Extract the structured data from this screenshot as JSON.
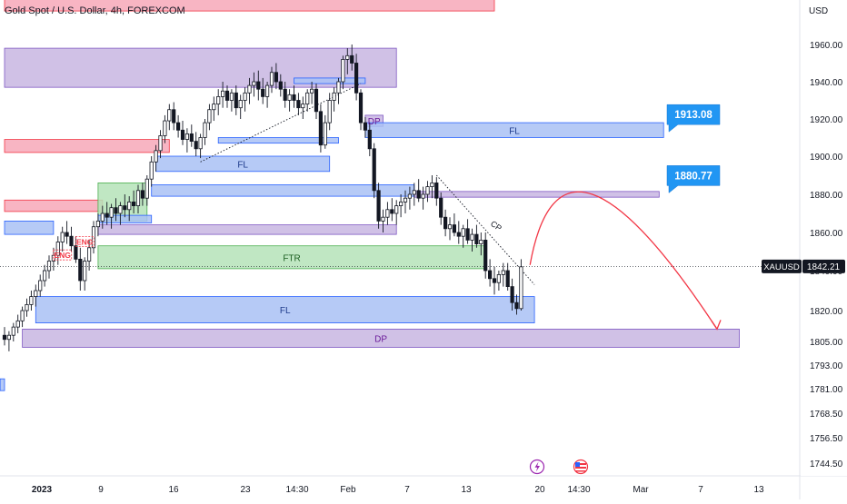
{
  "header": {
    "title": "Gold Spot / U.S. Dollar, 4h, FOREXCOM"
  },
  "chart_data": {
    "type": "candlestick",
    "title": "Gold Spot / U.S. Dollar, 4h, FOREXCOM",
    "currency_label": "USD",
    "symbol": "XAUUSD",
    "last_price": 1842.21,
    "last_price_label": "1842.21",
    "price_ticks": [
      1960.0,
      1940.0,
      1920.0,
      1900.0,
      1880.0,
      1860.0,
      1840.0,
      1820.0,
      1805.0,
      1793.0,
      1781.0,
      1768.5,
      1756.5,
      1744.5
    ],
    "price_tick_labels": [
      "1960.00",
      "1940.00",
      "1920.00",
      "1900.00",
      "1880.00",
      "1860.00",
      "1840.00",
      "1820.00",
      "1805.00",
      "1793.00",
      "1781.00",
      "1768.50",
      "1756.50",
      "1744.50"
    ],
    "time_labels": [
      "2023",
      "9",
      "16",
      "23",
      "14:30",
      "Feb",
      "7",
      "13",
      "20",
      "14:30",
      "Mar",
      "7",
      "13"
    ],
    "time_label_bold": [
      "2023"
    ],
    "price_callouts": [
      {
        "label": "1913.08",
        "price": 1913.08
      },
      {
        "label": "1880.77",
        "price": 1880.77
      }
    ],
    "zones": [
      {
        "kind": "red",
        "label": "",
        "top": 2000.0,
        "bottom": 1978.0,
        "start": 0,
        "end": 110
      },
      {
        "kind": "purple",
        "label": "",
        "top": 1958.0,
        "bottom": 1937.0,
        "start": 0,
        "end": 88
      },
      {
        "kind": "red",
        "label": "",
        "top": 1909.0,
        "bottom": 1902.0,
        "start": 0,
        "end": 37
      },
      {
        "kind": "red",
        "label": "",
        "top": 1877.0,
        "bottom": 1871.0,
        "start": 0,
        "end": 22
      },
      {
        "kind": "blue",
        "label": "",
        "top": 1866.0,
        "bottom": 1859.0,
        "start": 0,
        "end": 11
      },
      {
        "kind": "blue",
        "label": "FL",
        "top": 1900.0,
        "bottom": 1892.0,
        "start": 34,
        "end": 73
      },
      {
        "kind": "blue",
        "label": "",
        "top": 1910.0,
        "bottom": 1907.0,
        "start": 48,
        "end": 75
      },
      {
        "kind": "blue",
        "label": "",
        "top": 1942.0,
        "bottom": 1939.0,
        "start": 65,
        "end": 81
      },
      {
        "kind": "purple",
        "label": "DP",
        "top": 1922.0,
        "bottom": 1916.0,
        "start": 81,
        "end": 85
      },
      {
        "kind": "blue",
        "label": "FL",
        "top": 1918.0,
        "bottom": 1910.0,
        "start": 81,
        "end": 148
      },
      {
        "kind": "green",
        "label": "",
        "top": 1886.0,
        "bottom": 1866.0,
        "start": 21,
        "end": 32
      },
      {
        "kind": "blue",
        "label": "",
        "top": 1869.0,
        "bottom": 1865.0,
        "start": 21,
        "end": 33
      },
      {
        "kind": "blue",
        "label": "",
        "top": 1885.0,
        "bottom": 1879.0,
        "start": 33,
        "end": 92
      },
      {
        "kind": "purple",
        "label": "",
        "top": 1881.5,
        "bottom": 1878.5,
        "start": 92,
        "end": 147
      },
      {
        "kind": "purple",
        "label": "",
        "top": 1864.0,
        "bottom": 1859.0,
        "start": 21,
        "end": 88
      },
      {
        "kind": "green",
        "label": "FTR",
        "top": 1853.0,
        "bottom": 1841.0,
        "start": 21,
        "end": 108
      },
      {
        "kind": "blue",
        "label": "FL",
        "top": 1827.0,
        "bottom": 1814.0,
        "start": 7,
        "end": 119
      },
      {
        "kind": "purple",
        "label": "DP",
        "top": 1811.0,
        "bottom": 1802.0,
        "start": 4,
        "end": 165
      },
      {
        "kind": "blue",
        "label": "",
        "top": 1786.0,
        "bottom": 1780.0,
        "start": -1,
        "end": 0
      }
    ],
    "markers": [
      {
        "label": "ENG",
        "price": 1848.0,
        "index": 13
      },
      {
        "label": "ENG",
        "price": 1855.0,
        "index": 18
      }
    ],
    "annotations": [
      {
        "label": "CP",
        "price": 1864.0,
        "index": 109
      }
    ],
    "trendlines": [
      {
        "style": "dotted",
        "from": {
          "index": 44,
          "price": 1897.0
        },
        "to": {
          "index": 80,
          "price": 1939.0
        }
      },
      {
        "style": "dotted",
        "from": {
          "index": 97,
          "price": 1890.0
        },
        "to": {
          "index": 119,
          "price": 1833.0
        }
      }
    ],
    "projection": {
      "from": {
        "index": 118,
        "price": 1843.0
      },
      "peak": {
        "index": 132,
        "price": 1880.0
      },
      "to": {
        "index": 160,
        "price": 1811.0
      }
    },
    "candles": [
      [
        1808,
        1812,
        1803,
        1806
      ],
      [
        1806,
        1810,
        1800,
        1808
      ],
      [
        1808,
        1814,
        1805,
        1812
      ],
      [
        1812,
        1818,
        1809,
        1815
      ],
      [
        1815,
        1822,
        1812,
        1820
      ],
      [
        1820,
        1826,
        1817,
        1823
      ],
      [
        1823,
        1830,
        1820,
        1827
      ],
      [
        1827,
        1833,
        1822,
        1830
      ],
      [
        1830,
        1838,
        1827,
        1835
      ],
      [
        1835,
        1843,
        1832,
        1840
      ],
      [
        1840,
        1848,
        1836,
        1845
      ],
      [
        1845,
        1852,
        1840,
        1848
      ],
      [
        1848,
        1858,
        1843,
        1855
      ],
      [
        1855,
        1863,
        1850,
        1860
      ],
      [
        1860,
        1866,
        1854,
        1858
      ],
      [
        1858,
        1863,
        1850,
        1853
      ],
      [
        1853,
        1858,
        1844,
        1846
      ],
      [
        1846,
        1852,
        1830,
        1835
      ],
      [
        1835,
        1847,
        1830,
        1845
      ],
      [
        1845,
        1856,
        1840,
        1852
      ],
      [
        1852,
        1866,
        1849,
        1863
      ],
      [
        1863,
        1870,
        1858,
        1866
      ],
      [
        1866,
        1874,
        1862,
        1870
      ],
      [
        1870,
        1876,
        1864,
        1868
      ],
      [
        1868,
        1875,
        1862,
        1873
      ],
      [
        1873,
        1878,
        1866,
        1870
      ],
      [
        1870,
        1876,
        1864,
        1874
      ],
      [
        1874,
        1880,
        1868,
        1872
      ],
      [
        1872,
        1879,
        1866,
        1876
      ],
      [
        1876,
        1882,
        1870,
        1874
      ],
      [
        1874,
        1885,
        1870,
        1882
      ],
      [
        1882,
        1886,
        1874,
        1878
      ],
      [
        1878,
        1890,
        1874,
        1888
      ],
      [
        1888,
        1900,
        1884,
        1897
      ],
      [
        1897,
        1906,
        1892,
        1903
      ],
      [
        1903,
        1914,
        1899,
        1911
      ],
      [
        1911,
        1922,
        1907,
        1919
      ],
      [
        1919,
        1928,
        1914,
        1925
      ],
      [
        1925,
        1929,
        1914,
        1918
      ],
      [
        1918,
        1922,
        1910,
        1914
      ],
      [
        1914,
        1919,
        1906,
        1909
      ],
      [
        1909,
        1915,
        1902,
        1912
      ],
      [
        1912,
        1917,
        1905,
        1908
      ],
      [
        1908,
        1913,
        1900,
        1904
      ],
      [
        1904,
        1912,
        1899,
        1910
      ],
      [
        1910,
        1920,
        1906,
        1918
      ],
      [
        1918,
        1928,
        1914,
        1925
      ],
      [
        1925,
        1932,
        1919,
        1928
      ],
      [
        1928,
        1936,
        1922,
        1932
      ],
      [
        1932,
        1940,
        1926,
        1935
      ],
      [
        1935,
        1938,
        1926,
        1930
      ],
      [
        1930,
        1936,
        1924,
        1934
      ],
      [
        1934,
        1938,
        1922,
        1926
      ],
      [
        1926,
        1933,
        1920,
        1930
      ],
      [
        1930,
        1937,
        1924,
        1934
      ],
      [
        1934,
        1942,
        1928,
        1938
      ],
      [
        1938,
        1945,
        1932,
        1940
      ],
      [
        1940,
        1946,
        1930,
        1936
      ],
      [
        1936,
        1942,
        1928,
        1932
      ],
      [
        1932,
        1940,
        1926,
        1938
      ],
      [
        1938,
        1948,
        1934,
        1945
      ],
      [
        1945,
        1950,
        1936,
        1940
      ],
      [
        1940,
        1944,
        1932,
        1936
      ],
      [
        1936,
        1940,
        1926,
        1930
      ],
      [
        1930,
        1936,
        1924,
        1933
      ],
      [
        1933,
        1938,
        1926,
        1930
      ],
      [
        1930,
        1934,
        1922,
        1926
      ],
      [
        1926,
        1932,
        1920,
        1928
      ],
      [
        1928,
        1936,
        1924,
        1934
      ],
      [
        1934,
        1940,
        1928,
        1936
      ],
      [
        1936,
        1939,
        1920,
        1924
      ],
      [
        1924,
        1928,
        1902,
        1906
      ],
      [
        1906,
        1922,
        1904,
        1918
      ],
      [
        1918,
        1934,
        1914,
        1930
      ],
      [
        1930,
        1937,
        1924,
        1934
      ],
      [
        1934,
        1942,
        1928,
        1940
      ],
      [
        1940,
        1954,
        1936,
        1952
      ],
      [
        1952,
        1958,
        1944,
        1954
      ],
      [
        1954,
        1960,
        1946,
        1950
      ],
      [
        1950,
        1955,
        1930,
        1934
      ],
      [
        1934,
        1936,
        1914,
        1918
      ],
      [
        1918,
        1921,
        1910,
        1914
      ],
      [
        1914,
        1918,
        1900,
        1904
      ],
      [
        1904,
        1907,
        1878,
        1882
      ],
      [
        1882,
        1886,
        1862,
        1866
      ],
      [
        1866,
        1872,
        1860,
        1868
      ],
      [
        1868,
        1876,
        1864,
        1872
      ],
      [
        1872,
        1878,
        1866,
        1870
      ],
      [
        1870,
        1877,
        1864,
        1874
      ],
      [
        1874,
        1880,
        1868,
        1876
      ],
      [
        1876,
        1882,
        1870,
        1878
      ],
      [
        1878,
        1884,
        1872,
        1880
      ],
      [
        1880,
        1886,
        1874,
        1882
      ],
      [
        1882,
        1888,
        1876,
        1878
      ],
      [
        1878,
        1884,
        1872,
        1880
      ],
      [
        1880,
        1887,
        1876,
        1884
      ],
      [
        1884,
        1890,
        1878,
        1886
      ],
      [
        1886,
        1889,
        1874,
        1878
      ],
      [
        1878,
        1881,
        1864,
        1868
      ],
      [
        1868,
        1872,
        1858,
        1862
      ],
      [
        1862,
        1868,
        1856,
        1864
      ],
      [
        1864,
        1870,
        1858,
        1860
      ],
      [
        1860,
        1866,
        1854,
        1858
      ],
      [
        1858,
        1864,
        1852,
        1862
      ],
      [
        1862,
        1867,
        1854,
        1856
      ],
      [
        1856,
        1862,
        1850,
        1859
      ],
      [
        1859,
        1864,
        1852,
        1854
      ],
      [
        1854,
        1860,
        1848,
        1856
      ],
      [
        1856,
        1860,
        1836,
        1840
      ],
      [
        1840,
        1846,
        1832,
        1836
      ],
      [
        1836,
        1842,
        1828,
        1834
      ],
      [
        1834,
        1840,
        1830,
        1838
      ],
      [
        1838,
        1844,
        1832,
        1840
      ],
      [
        1840,
        1844,
        1830,
        1832
      ],
      [
        1832,
        1836,
        1820,
        1824
      ],
      [
        1824,
        1828,
        1818,
        1821
      ],
      [
        1821,
        1846,
        1820,
        1842
      ]
    ]
  }
}
